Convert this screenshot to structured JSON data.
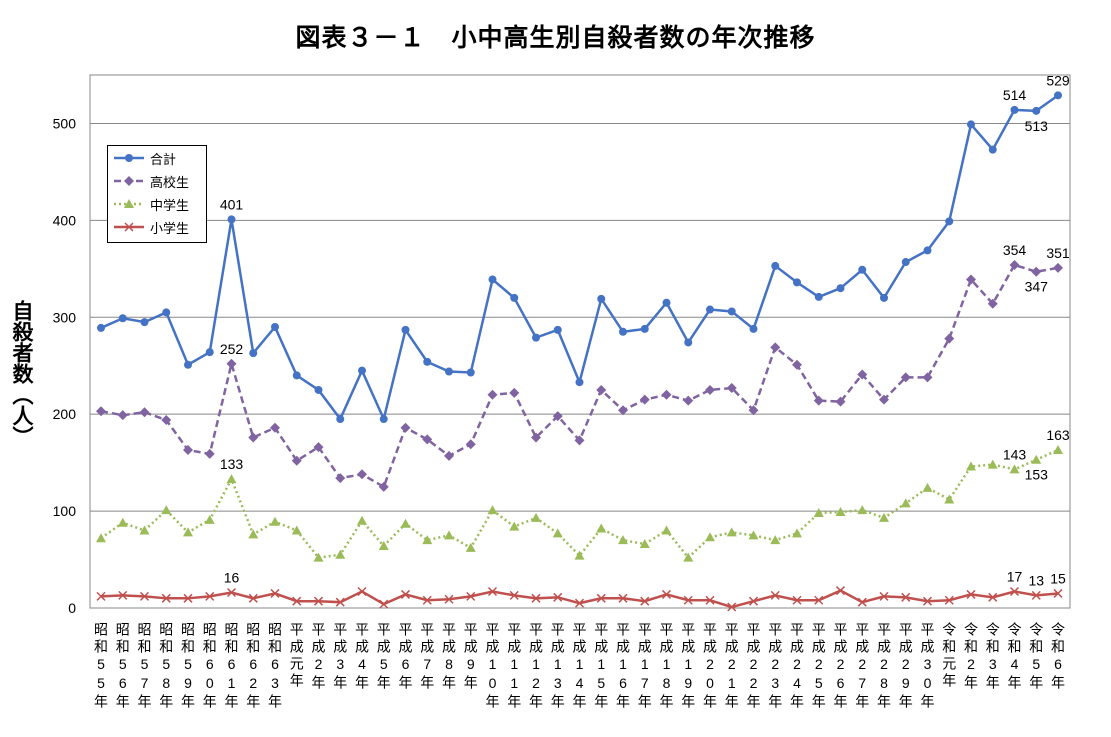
{
  "chart_data": {
    "type": "line",
    "title": "図表３－１　小中高生別自殺者数の年次推移",
    "xlabel": "",
    "ylabel": "自殺者数（人）",
    "ylim": [
      0,
      550
    ],
    "yticks": [
      0,
      100,
      200,
      300,
      400,
      500
    ],
    "grid": true,
    "legend_position": "top-left",
    "categories": [
      "昭和55年",
      "昭和56年",
      "昭和57年",
      "昭和58年",
      "昭和59年",
      "昭和60年",
      "昭和61年",
      "昭和62年",
      "昭和63年",
      "平成元年",
      "平成2年",
      "平成3年",
      "平成4年",
      "平成5年",
      "平成6年",
      "平成7年",
      "平成8年",
      "平成9年",
      "平成10年",
      "平成11年",
      "平成12年",
      "平成13年",
      "平成14年",
      "平成15年",
      "平成16年",
      "平成17年",
      "平成18年",
      "平成19年",
      "平成20年",
      "平成21年",
      "平成22年",
      "平成23年",
      "平成24年",
      "平成25年",
      "平成26年",
      "平成27年",
      "平成28年",
      "平成29年",
      "平成30年",
      "令和元年",
      "令和2年",
      "令和3年",
      "令和4年",
      "令和5年",
      "令和6年"
    ],
    "series": [
      {
        "name": "合計",
        "color": "#4472C4",
        "style": "solid",
        "marker": "circle",
        "values": [
          289,
          299,
          295,
          305,
          251,
          264,
          401,
          263,
          290,
          240,
          225,
          195,
          245,
          195,
          287,
          254,
          244,
          243,
          339,
          320,
          279,
          287,
          233,
          319,
          285,
          288,
          315,
          274,
          308,
          306,
          288,
          353,
          336,
          321,
          330,
          349,
          320,
          357,
          369,
          399,
          499,
          473,
          514,
          513,
          529
        ]
      },
      {
        "name": "高校生",
        "color": "#8064A2",
        "style": "dashed",
        "marker": "diamond",
        "values": [
          203,
          199,
          202,
          194,
          163,
          159,
          252,
          176,
          186,
          152,
          166,
          134,
          138,
          125,
          186,
          174,
          157,
          169,
          220,
          222,
          176,
          198,
          173,
          225,
          204,
          215,
          220,
          214,
          225,
          227,
          204,
          269,
          251,
          214,
          213,
          241,
          215,
          238,
          238,
          278,
          339,
          314,
          354,
          347,
          351
        ]
      },
      {
        "name": "中学生",
        "color": "#9BBB59",
        "style": "dotted",
        "marker": "triangle",
        "values": [
          72,
          88,
          80,
          101,
          78,
          91,
          133,
          76,
          89,
          80,
          52,
          55,
          90,
          64,
          87,
          70,
          75,
          62,
          101,
          84,
          93,
          77,
          54,
          82,
          70,
          66,
          80,
          52,
          73,
          78,
          75,
          70,
          77,
          98,
          99,
          101,
          93,
          108,
          124,
          112,
          146,
          148,
          143,
          153,
          163
        ]
      },
      {
        "name": "小学生",
        "color": "#C0504D",
        "style": "solid",
        "marker": "x",
        "values": [
          12,
          13,
          12,
          10,
          10,
          12,
          16,
          10,
          15,
          7,
          7,
          6,
          17,
          4,
          14,
          8,
          9,
          12,
          17,
          13,
          10,
          11,
          5,
          10,
          10,
          7,
          14,
          8,
          8,
          1,
          7,
          13,
          8,
          8,
          18,
          6,
          12,
          11,
          7,
          8,
          14,
          11,
          17,
          13,
          15
        ]
      }
    ],
    "annotations": [
      {
        "series": 0,
        "index": 6,
        "text": "401",
        "place": "above"
      },
      {
        "series": 1,
        "index": 6,
        "text": "252",
        "place": "above"
      },
      {
        "series": 2,
        "index": 6,
        "text": "133",
        "place": "above"
      },
      {
        "series": 3,
        "index": 6,
        "text": "16",
        "place": "above"
      },
      {
        "series": 0,
        "index": 42,
        "text": "514",
        "place": "above"
      },
      {
        "series": 0,
        "index": 43,
        "text": "513",
        "place": "below"
      },
      {
        "series": 0,
        "index": 44,
        "text": "529",
        "place": "above"
      },
      {
        "series": 1,
        "index": 42,
        "text": "354",
        "place": "above"
      },
      {
        "series": 1,
        "index": 43,
        "text": "347",
        "place": "below"
      },
      {
        "series": 1,
        "index": 44,
        "text": "351",
        "place": "above"
      },
      {
        "series": 2,
        "index": 42,
        "text": "143",
        "place": "above"
      },
      {
        "series": 2,
        "index": 43,
        "text": "153",
        "place": "below"
      },
      {
        "series": 2,
        "index": 44,
        "text": "163",
        "place": "above"
      },
      {
        "series": 3,
        "index": 42,
        "text": "17",
        "place": "above"
      },
      {
        "series": 3,
        "index": 43,
        "text": "13",
        "place": "above"
      },
      {
        "series": 3,
        "index": 44,
        "text": "15",
        "place": "above"
      }
    ]
  }
}
